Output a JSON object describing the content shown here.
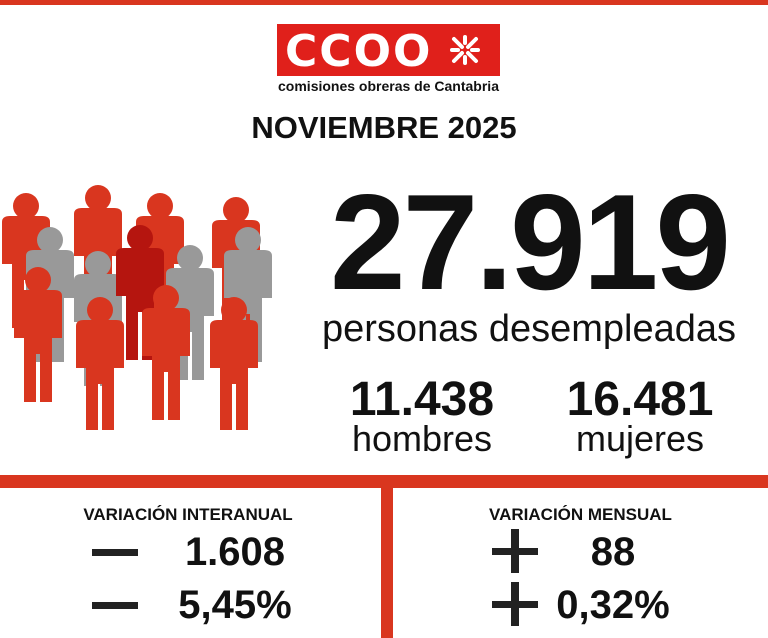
{
  "header": {
    "logo": "CCOO",
    "subtitle": "comisiones obreras de Cantabria",
    "title": "NOVIEMBRE 2025"
  },
  "summary": {
    "total": "27.919",
    "total_label": "personas desempleadas",
    "men": "11.438",
    "men_label": "hombres",
    "women": "16.481",
    "women_label": "mujeres"
  },
  "variations": [
    {
      "heading": "VARIACIÓN INTERANUAL",
      "count": "1.608",
      "percent": "5,45%"
    },
    {
      "heading": "VARIACIÓN MENSUAL",
      "count": "88",
      "percent": "0,32%"
    }
  ]
}
